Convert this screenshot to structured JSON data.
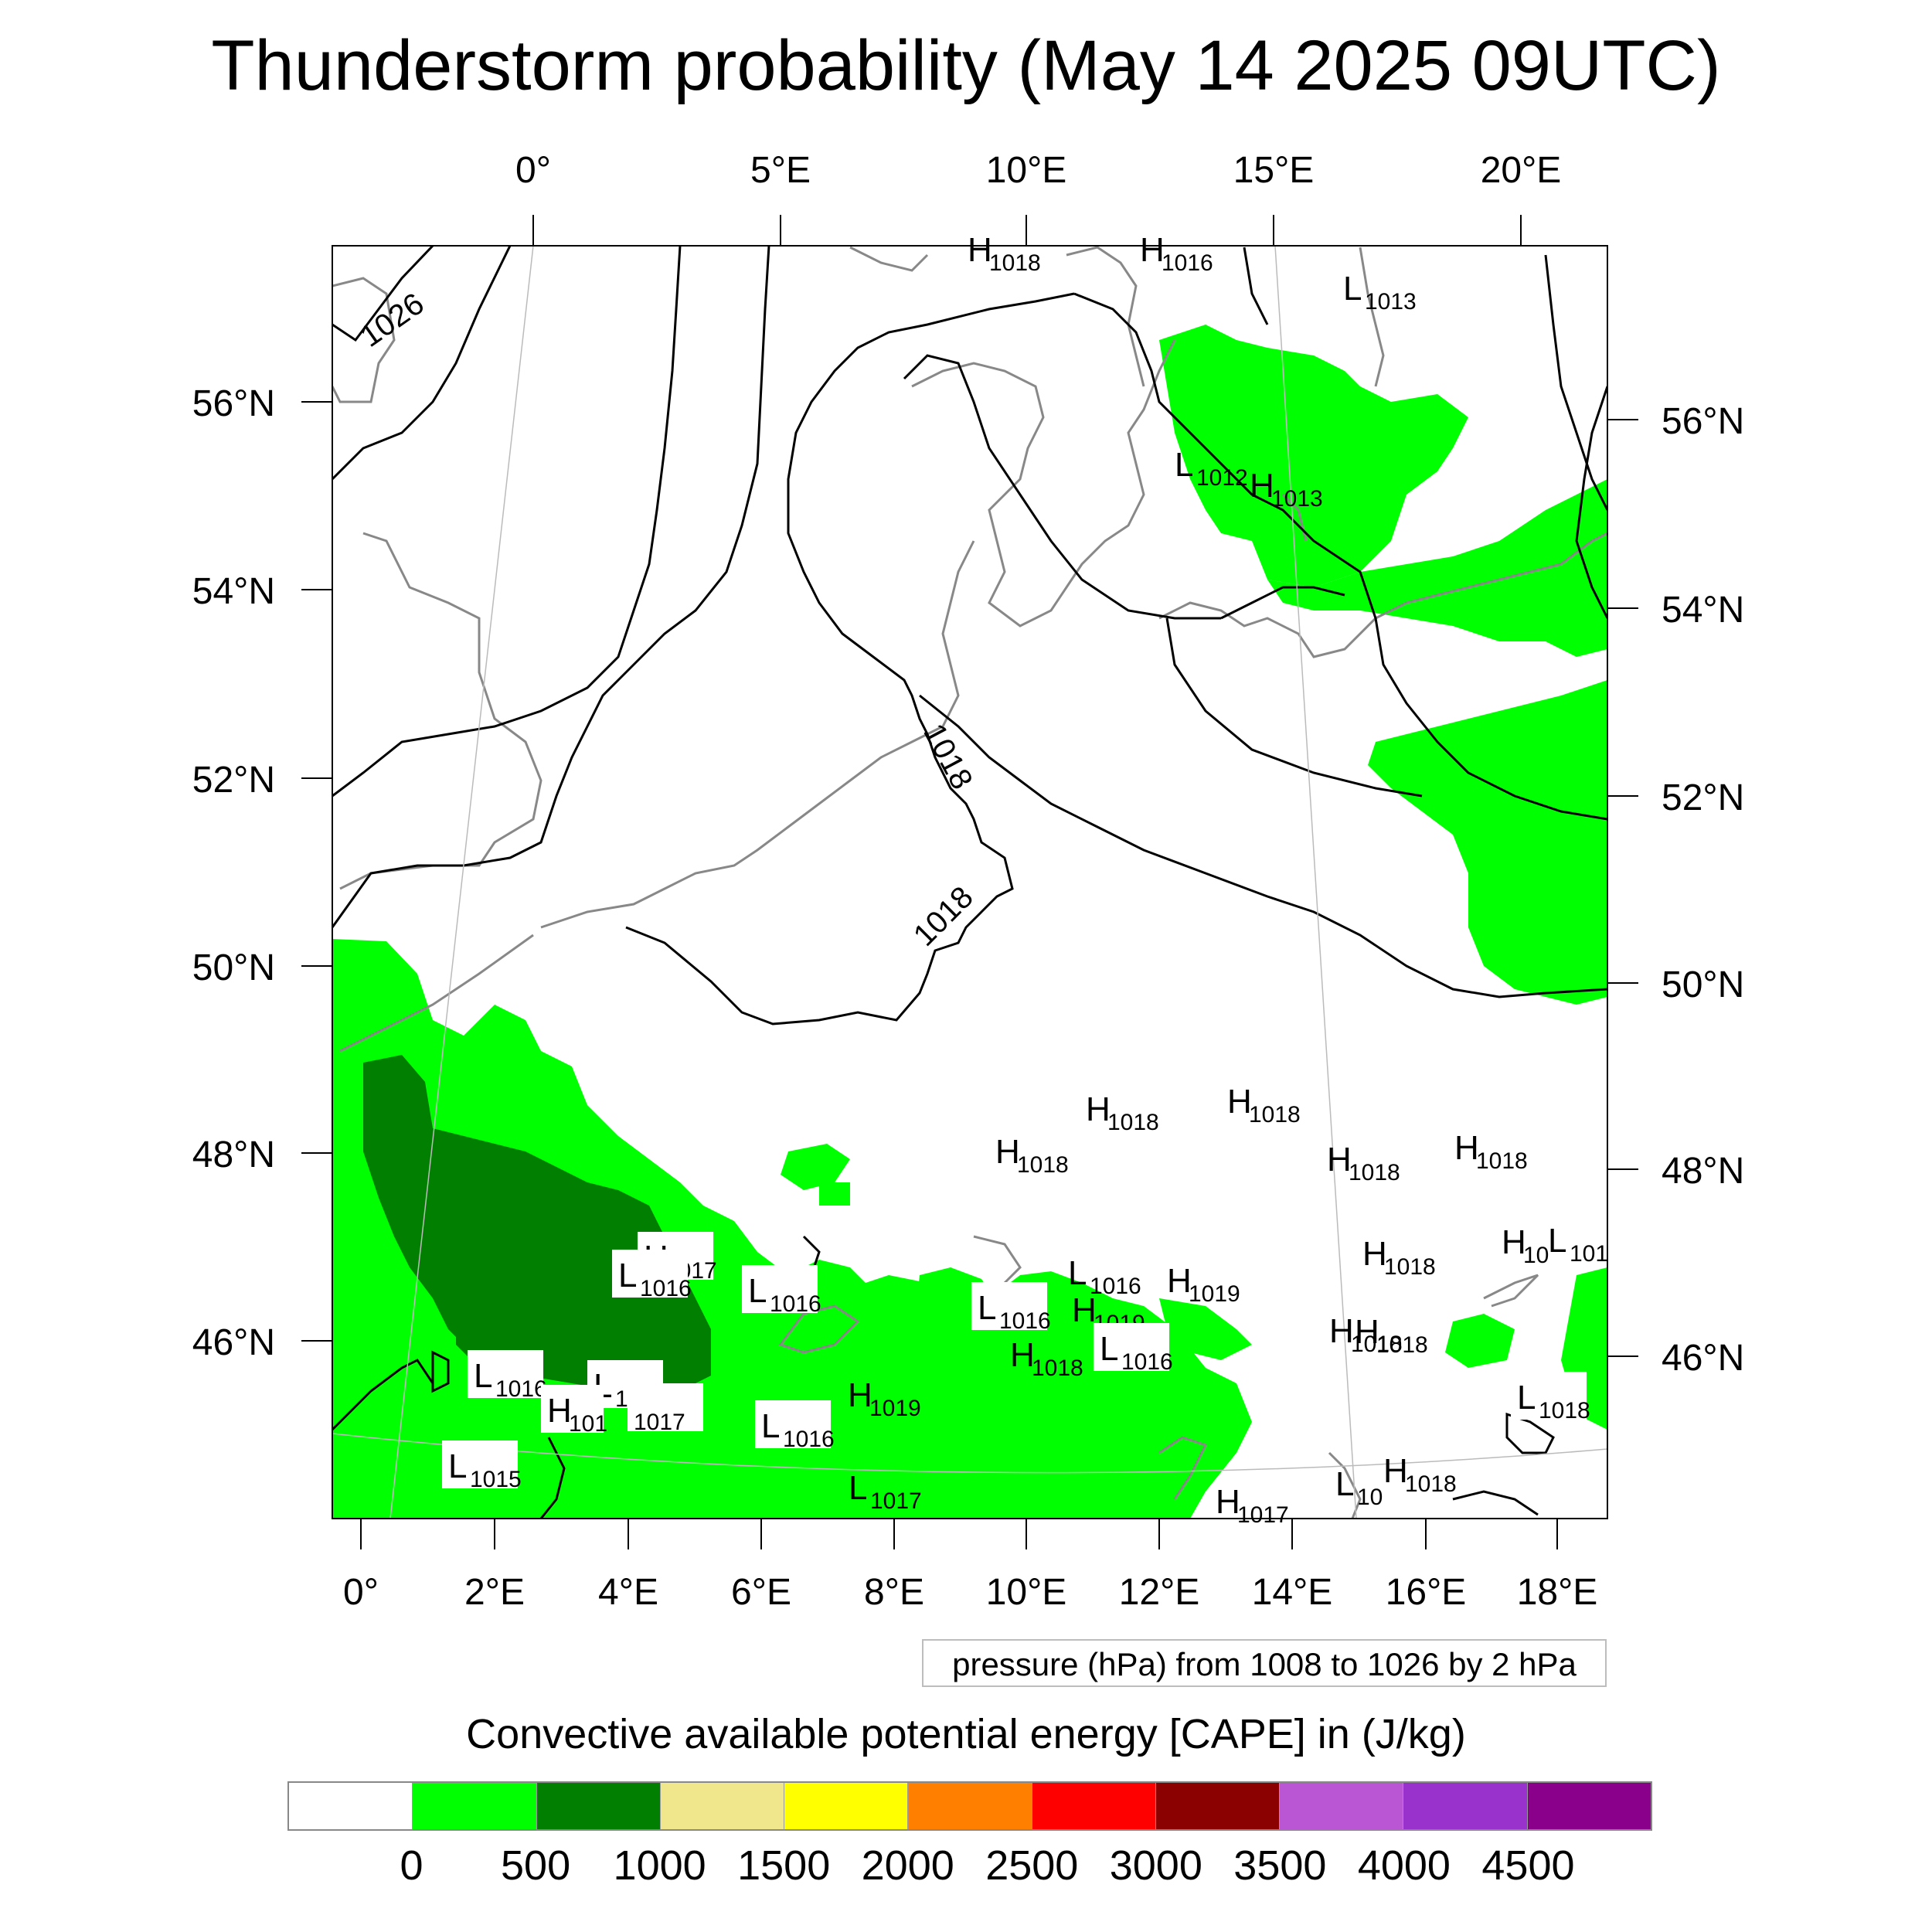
{
  "title": "Thunderstorm probability (May 14 2025 09UTC)",
  "top_lon_labels": [
    "0°",
    "5°E",
    "10°E",
    "15°E",
    "20°E"
  ],
  "bottom_lon_labels": [
    "0°",
    "2°E",
    "4°E",
    "6°E",
    "8°E",
    "10°E",
    "12°E",
    "14°E",
    "16°E",
    "18°E"
  ],
  "left_lat_labels": [
    "56°N",
    "54°N",
    "52°N",
    "50°N",
    "48°N",
    "46°N"
  ],
  "right_lat_labels": [
    "56°N",
    "54°N",
    "52°N",
    "50°N",
    "48°N",
    "46°N"
  ],
  "contour_labels": [
    "1026",
    "1018",
    "1018"
  ],
  "pressure_centers": [
    {
      "letter": "H",
      "value": "1018"
    },
    {
      "letter": "H",
      "value": "1016"
    },
    {
      "letter": "L",
      "value": "1013"
    },
    {
      "letter": "L",
      "value": "1012"
    },
    {
      "letter": "H",
      "value": "1013"
    },
    {
      "letter": "H",
      "value": "1018"
    },
    {
      "letter": "H",
      "value": "1018"
    },
    {
      "letter": "H",
      "value": "1018"
    },
    {
      "letter": "H",
      "value": "1018"
    },
    {
      "letter": "H",
      "value": "1018"
    },
    {
      "letter": "H",
      "value": "1018"
    },
    {
      "letter": "H",
      "value": "1017"
    },
    {
      "letter": "L",
      "value": "1016"
    },
    {
      "letter": "L",
      "value": "1016"
    },
    {
      "letter": "L",
      "value": "1016"
    },
    {
      "letter": "H",
      "value": "1019"
    },
    {
      "letter": "L",
      "value": "1016"
    },
    {
      "letter": "H",
      "value": "1019"
    },
    {
      "letter": "H",
      "value": "1018"
    },
    {
      "letter": "L",
      "value": "1016"
    },
    {
      "letter": "H",
      "value": "1018"
    },
    {
      "letter": "H",
      "value": "1018"
    },
    {
      "letter": "H",
      "value": "1019"
    },
    {
      "letter": "L",
      "value": "1016"
    },
    {
      "letter": "L",
      "value": "1016"
    },
    {
      "letter": "H",
      "value": "101"
    },
    {
      "letter": "",
      "value": "1017"
    },
    {
      "letter": "L",
      "value": "1016"
    },
    {
      "letter": "L",
      "value": "1015"
    },
    {
      "letter": "L",
      "value": "1017"
    },
    {
      "letter": "L",
      "value": "1018"
    },
    {
      "letter": "L",
      "value": "10"
    },
    {
      "letter": "H",
      "value": "1018"
    },
    {
      "letter": "H",
      "value": "1017"
    },
    {
      "letter": "H",
      "value": "10"
    },
    {
      "letter": "L",
      "value": "101"
    }
  ],
  "contour_note": "pressure (hPa) from 1008 to 1026 by 2 hPa",
  "colorbar": {
    "title": "Convective available potential energy [CAPE] in (J/kg)",
    "labels": [
      "0",
      "500",
      "1000",
      "1500",
      "2000",
      "2500",
      "3000",
      "3500",
      "4000",
      "4500"
    ],
    "colors": [
      "#ffffff",
      "#00ff00",
      "#007f00",
      "#f0e68c",
      "#ffff00",
      "#ff8000",
      "#ff0000",
      "#8b0000",
      "#ba55d3",
      "#9932cc",
      "#8b008b"
    ]
  },
  "colors": {
    "cape_low": "#00ff00",
    "cape_mid": "#007f00",
    "coastline": "#888888",
    "isobar": "#000000"
  }
}
